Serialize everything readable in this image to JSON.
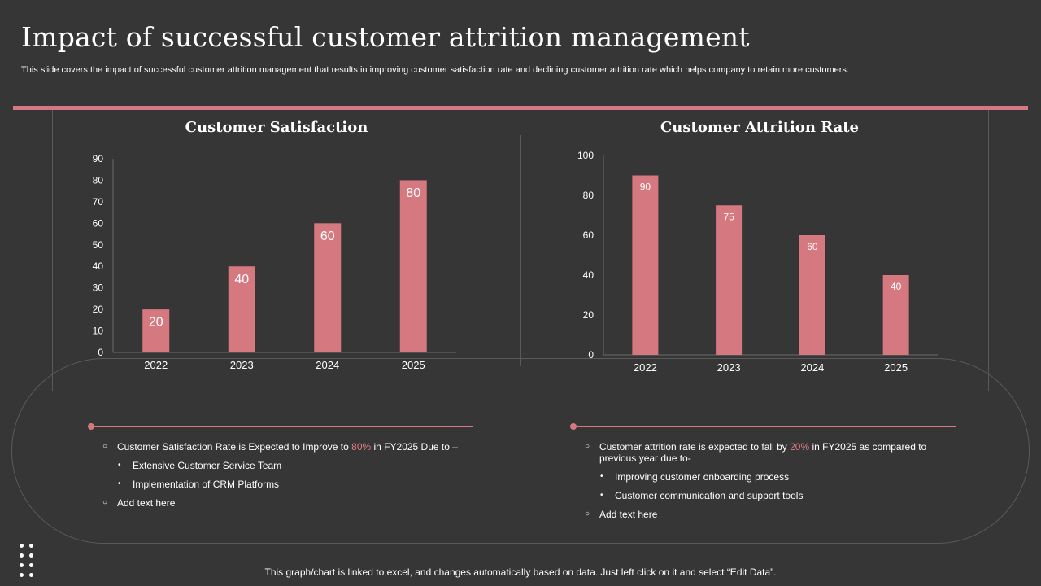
{
  "header": {
    "title": "Impact of successful customer attrition management",
    "subtitle": "This slide covers the impact of successful customer attrition management that results in improving customer satisfaction rate and declining customer attrition rate which helps company to retain more customers."
  },
  "colors": {
    "bar": "#d6787f",
    "accent": "#d6787f",
    "highlight": "#e07b84",
    "background": "#363636"
  },
  "chart_data": [
    {
      "type": "bar",
      "title": "Customer Satisfaction",
      "categories": [
        "2022",
        "2023",
        "2024",
        "2025"
      ],
      "values": [
        20,
        40,
        60,
        80
      ],
      "ylim": [
        0,
        90
      ],
      "yticks": [
        0,
        10,
        20,
        30,
        40,
        50,
        60,
        70,
        80,
        90
      ],
      "xlabel": "",
      "ylabel": ""
    },
    {
      "type": "bar",
      "title": "Customer Attrition Rate",
      "categories": [
        "2022",
        "2023",
        "2024",
        "2025"
      ],
      "values": [
        90,
        75,
        60,
        40
      ],
      "ylim": [
        0,
        100
      ],
      "yticks": [
        0,
        20,
        40,
        60,
        80,
        100
      ],
      "xlabel": "",
      "ylabel": ""
    }
  ],
  "notes": {
    "left": {
      "main_prefix": "Customer Satisfaction Rate is Expected to Improve to ",
      "main_highlight": "80%",
      "main_suffix": " in FY2025 Due to –",
      "sub_items": [
        "Extensive Customer Service Team",
        "Implementation of CRM Platforms"
      ],
      "add_text": "Add text here"
    },
    "right": {
      "main_prefix": "Customer attrition rate is expected to fall by ",
      "main_highlight": "20%",
      "main_suffix": " in FY2025 as compared to previous year due to-",
      "sub_items": [
        "Improving customer onboarding process",
        "Customer communication and support tools"
      ],
      "add_text": "Add text here"
    }
  },
  "footer": "This graph/chart is linked to excel, and changes automatically based on data. Just left click on it and select “Edit Data”."
}
